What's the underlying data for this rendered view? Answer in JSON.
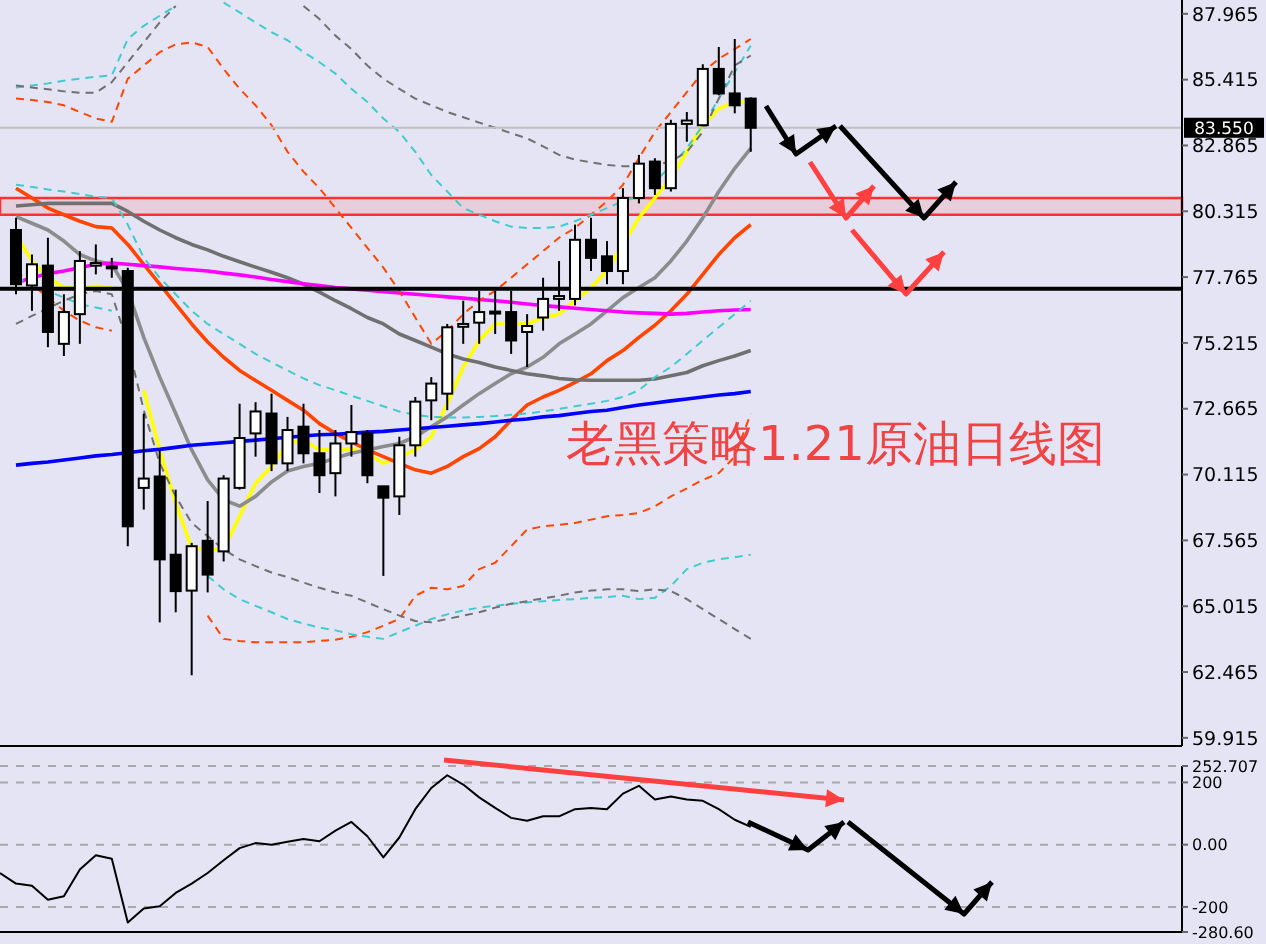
{
  "chart_data": [
    {
      "type": "candlestick",
      "title": "老黑策略1.21原油日线图",
      "color": "#000000",
      "categories": [
        null,
        null,
        null,
        null,
        null,
        null,
        null,
        null,
        null,
        null,
        null,
        null,
        null,
        null,
        null,
        null,
        null,
        null,
        null,
        null,
        null,
        null,
        null,
        null,
        null,
        null,
        null,
        null,
        null,
        null,
        null,
        null,
        null,
        null,
        null,
        null,
        null,
        null,
        null,
        null,
        null,
        null,
        null,
        null,
        null,
        null,
        null,
        null,
        null,
        null,
        null,
        null,
        null,
        null,
        null,
        null,
        null,
        null,
        null,
        null,
        null,
        null,
        null,
        null,
        null,
        null,
        null,
        null,
        null,
        null,
        null,
        null,
        null,
        null,
        null
      ],
      "ohlc": [
        null,
        [
          79.59,
          80.06,
          77.1,
          77.49
        ],
        [
          77.44,
          78.64,
          76.46,
          78.26
        ],
        [
          78.21,
          79.29,
          75.05,
          75.64
        ],
        [
          75.18,
          77.1,
          74.71,
          76.41
        ],
        [
          76.33,
          78.77,
          75.18,
          78.39
        ],
        [
          78.21,
          79.03,
          77.87,
          78.31
        ],
        [
          78.13,
          78.51,
          77.74,
          78.18
        ],
        [
          78.0,
          78.13,
          67.34,
          68.11
        ],
        [
          69.6,
          72.48,
          68.76,
          69.96
        ],
        [
          70.04,
          71.07,
          64.39,
          66.83
        ],
        [
          67.01,
          69.53,
          64.78,
          65.6
        ],
        [
          65.62,
          67.47,
          62.34,
          67.34
        ],
        [
          67.55,
          69.09,
          65.55,
          66.24
        ],
        [
          67.14,
          70.09,
          66.75,
          69.96
        ],
        [
          69.6,
          72.86,
          69.53,
          71.53
        ],
        [
          71.71,
          72.92,
          70.81,
          72.56
        ],
        [
          72.48,
          73.25,
          70.25,
          70.55
        ],
        [
          70.55,
          72.35,
          70.25,
          71.84
        ],
        [
          71.97,
          72.86,
          70.55,
          70.94
        ],
        [
          70.94,
          71.84,
          69.4,
          70.09
        ],
        [
          70.17,
          71.84,
          69.27,
          71.32
        ],
        [
          71.32,
          72.81,
          70.81,
          71.76
        ],
        [
          71.71,
          71.84,
          69.78,
          70.09
        ],
        [
          69.66,
          69.66,
          66.19,
          69.22
        ],
        [
          69.27,
          71.58,
          68.55,
          71.25
        ],
        [
          71.25,
          73.12,
          70.81,
          72.94
        ],
        [
          72.99,
          73.89,
          72.22,
          73.64
        ],
        [
          73.25,
          75.95,
          72.61,
          75.82
        ],
        [
          75.84,
          76.85,
          75.18,
          75.95
        ],
        [
          76.0,
          77.23,
          75.18,
          76.41
        ],
        [
          76.38,
          77.23,
          75.56,
          76.43
        ],
        [
          76.41,
          77.23,
          74.79,
          75.31
        ],
        [
          75.64,
          76.33,
          74.28,
          75.87
        ],
        [
          76.2,
          77.74,
          75.69,
          76.92
        ],
        [
          76.92,
          78.39,
          76.46,
          77.03
        ],
        [
          76.92,
          79.8,
          76.67,
          79.21
        ],
        [
          79.21,
          80.06,
          78.0,
          78.51
        ],
        [
          78.57,
          79.16,
          77.49,
          78.0
        ],
        [
          78.0,
          81.21,
          77.49,
          80.83
        ],
        [
          80.83,
          82.5,
          80.62,
          82.16
        ],
        [
          82.24,
          82.37,
          80.95,
          81.21
        ],
        [
          81.21,
          83.86,
          81.08,
          83.7
        ],
        [
          83.7,
          84.16,
          83.01,
          83.83
        ],
        [
          83.65,
          86.01,
          83.6,
          85.83
        ],
        [
          85.83,
          86.68,
          84.81,
          84.88
        ],
        [
          84.88,
          86.99,
          84.11,
          84.42
        ],
        [
          84.68,
          84.73,
          82.62,
          83.55
        ],
        null,
        null,
        null,
        null,
        null,
        null,
        null,
        null,
        null,
        null,
        null,
        null,
        null,
        null,
        null,
        null,
        null,
        null,
        null,
        null,
        null,
        null,
        null,
        null,
        null,
        null,
        null
      ],
      "series": [
        {
          "type": "line",
          "color": "#ffff00",
          "line_style": "solid",
          "values": [
            null,
            79.41,
            78.39,
            77.74,
            77.36,
            77.31,
            77.41,
            77.36,
            null,
            73.38,
            71.07,
            69.01,
            67.27,
            67.22,
            67.22,
            68.5,
            69.78,
            70.43,
            71.32,
            71.45,
            71.07,
            71.07,
            71.12,
            70.94,
            70.55,
            70.81,
            71.07,
            71.58,
            72.86,
            74.28,
            75.31,
            75.95,
            75.95,
            75.95,
            76.2,
            76.33,
            76.85,
            77.36,
            78.0,
            79.03,
            80.06,
            80.83,
            81.6,
            82.62,
            83.65,
            84.29,
            84.55,
            84.55,
            null,
            null,
            null,
            null,
            null,
            null,
            null,
            null,
            null,
            null,
            null,
            null,
            null,
            null,
            null,
            null,
            null,
            null,
            null,
            null,
            null,
            null,
            null,
            null,
            null,
            null,
            null
          ]
        },
        {
          "type": "line",
          "color": "#8c8c8c",
          "line_style": "solid",
          "values": [
            null,
            80.11,
            79.85,
            79.59,
            79.16,
            78.64,
            78.39,
            78.26,
            77.23,
            75.43,
            73.89,
            72.48,
            71.07,
            69.91,
            69.14,
            68.89,
            69.27,
            69.83,
            70.25,
            70.43,
            70.55,
            70.76,
            70.94,
            71.07,
            71.2,
            71.32,
            71.58,
            71.97,
            72.35,
            72.81,
            73.25,
            73.64,
            74.02,
            74.28,
            74.66,
            75.18,
            75.56,
            75.95,
            76.46,
            76.97,
            77.36,
            77.74,
            78.39,
            79.16,
            80.06,
            81.08,
            81.98,
            82.75,
            null,
            null,
            null,
            null,
            null,
            null,
            null,
            null,
            null,
            null,
            null,
            null,
            null,
            null,
            null,
            null,
            null,
            null,
            null,
            null,
            null,
            null,
            null,
            null,
            null,
            null,
            null
          ]
        },
        {
          "type": "line",
          "color": "#ff4500",
          "line_style": "solid",
          "values": [
            null,
            81.21,
            80.83,
            80.44,
            80.18,
            79.93,
            79.72,
            79.67,
            79.03,
            78.26,
            77.49,
            76.72,
            75.95,
            75.25,
            74.66,
            74.15,
            73.76,
            73.38,
            72.99,
            72.61,
            72.09,
            71.71,
            71.38,
            71.07,
            70.81,
            70.55,
            70.3,
            70.17,
            70.43,
            70.81,
            71.12,
            71.58,
            72.22,
            72.81,
            73.12,
            73.38,
            73.69,
            74.02,
            74.53,
            74.92,
            75.43,
            75.9,
            76.46,
            77.1,
            77.87,
            78.64,
            79.29,
            79.8,
            null,
            null,
            null,
            null,
            null,
            null,
            null,
            null,
            null,
            null,
            null,
            null,
            null,
            null,
            null,
            null,
            null,
            null,
            null,
            null,
            null,
            null,
            null,
            null,
            null,
            null,
            null
          ]
        },
        {
          "type": "line",
          "color": "#707070",
          "line_style": "solid",
          "values": [
            null,
            80.52,
            80.57,
            80.62,
            80.62,
            80.62,
            80.62,
            80.62,
            80.31,
            79.93,
            79.59,
            79.29,
            79.03,
            78.82,
            78.57,
            78.36,
            78.15,
            77.95,
            77.74,
            77.49,
            77.18,
            76.85,
            76.54,
            76.2,
            75.95,
            75.56,
            75.31,
            75.05,
            74.79,
            74.59,
            74.46,
            74.28,
            74.15,
            74.02,
            73.94,
            73.84,
            73.79,
            73.77,
            73.77,
            73.77,
            73.77,
            73.82,
            73.94,
            74.07,
            74.33,
            74.53,
            74.71,
            74.92,
            null,
            null,
            null,
            null,
            null,
            null,
            null,
            null,
            null,
            null,
            null,
            null,
            null,
            null,
            null,
            null,
            null,
            null,
            null,
            null,
            null,
            null,
            null,
            null,
            null,
            null,
            null
          ]
        },
        {
          "type": "line",
          "color": "#ff00ff",
          "line_style": "solid",
          "values": [
            null,
            77.54,
            77.74,
            77.9,
            78.0,
            78.13,
            78.26,
            78.31,
            78.26,
            78.21,
            78.16,
            78.1,
            78.05,
            78.0,
            77.92,
            77.85,
            77.77,
            77.67,
            77.59,
            77.51,
            77.44,
            77.36,
            77.31,
            77.26,
            77.2,
            77.15,
            77.1,
            77.05,
            77.0,
            76.95,
            76.9,
            76.85,
            76.79,
            76.72,
            76.66,
            76.61,
            76.56,
            76.51,
            76.46,
            76.41,
            76.38,
            76.36,
            76.33,
            76.36,
            76.41,
            76.46,
            76.49,
            76.51,
            null,
            null,
            null,
            null,
            null,
            null,
            null,
            null,
            null,
            null,
            null,
            null,
            null,
            null,
            null,
            null,
            null,
            null,
            null,
            null,
            null,
            null,
            null,
            null,
            null,
            null,
            null
          ]
        },
        {
          "type": "line",
          "color": "#0000ff",
          "line_style": "solid",
          "values": [
            null,
            70.48,
            70.55,
            70.6,
            70.68,
            70.76,
            70.84,
            70.89,
            70.96,
            71.04,
            71.09,
            71.17,
            71.25,
            71.3,
            71.35,
            71.4,
            71.45,
            71.5,
            71.56,
            71.61,
            71.66,
            71.68,
            71.71,
            71.76,
            71.79,
            71.84,
            71.89,
            71.94,
            71.99,
            72.04,
            72.09,
            72.15,
            72.22,
            72.27,
            72.35,
            72.4,
            72.48,
            72.56,
            72.61,
            72.71,
            72.81,
            72.89,
            72.97,
            73.04,
            73.12,
            73.2,
            73.25,
            73.33,
            null,
            null,
            null,
            null,
            null,
            null,
            null,
            null,
            null,
            null,
            null,
            null,
            null,
            null,
            null,
            null,
            null,
            null,
            null,
            null,
            null,
            null,
            null,
            null,
            null,
            null,
            null
          ]
        },
        {
          "type": "line",
          "color": "#ff4500",
          "line_style": "dashed",
          "values": [
            null,
            84.68,
            84.63,
            84.55,
            84.42,
            84.16,
            83.91,
            83.78,
            85.45,
            85.96,
            86.48,
            86.78,
            86.86,
            86.68,
            85.83,
            85.06,
            84.42,
            83.65,
            82.62,
            81.85,
            81.21,
            80.44,
            79.67,
            78.9,
            78.13,
            77.23,
            76.2,
            75.18,
            75.69,
            76.33,
            76.85,
            77.23,
            77.74,
            78.26,
            78.77,
            79.29,
            79.67,
            80.18,
            80.7,
            81.34,
            82.37,
            83.39,
            84.16,
            84.93,
            85.7,
            86.22,
            86.6,
            86.99,
            null,
            null,
            null,
            null,
            null,
            null,
            null,
            null,
            null,
            null,
            null,
            null,
            null,
            null,
            null,
            null,
            null,
            null,
            null,
            null,
            null,
            null,
            null,
            null,
            null,
            null,
            null
          ]
        },
        {
          "type": "line",
          "color": "#ff4500",
          "line_style": "dashed",
          "values": [
            null,
            78.0,
            77.49,
            76.97,
            76.46,
            76.08,
            75.82,
            75.69,
            null,
            null,
            null,
            null,
            null,
            64.65,
            63.75,
            63.67,
            63.62,
            63.62,
            63.62,
            63.62,
            63.67,
            63.72,
            63.83,
            64.01,
            64.26,
            64.52,
            65.42,
            65.73,
            65.67,
            65.8,
            66.45,
            66.7,
            67.34,
            67.99,
            68.11,
            68.17,
            68.24,
            68.37,
            68.5,
            68.55,
            68.63,
            68.88,
            69.27,
            69.58,
            69.91,
            70.17,
            70.81,
            72.48,
            null,
            null,
            null,
            null,
            null,
            null,
            null,
            null,
            null,
            null,
            null,
            null,
            null,
            null,
            null,
            null,
            null,
            null,
            null,
            null,
            null,
            null,
            null,
            null,
            null,
            null,
            null
          ]
        },
        {
          "type": "line",
          "color": "#40cccc",
          "line_style": "dashed",
          "values": [
            null,
            85.11,
            85.19,
            85.27,
            85.37,
            85.45,
            85.53,
            85.58,
            86.99,
            87.5,
            87.89,
            88.27,
            null,
            null,
            88.4,
            88.02,
            87.63,
            87.25,
            86.94,
            86.48,
            86.09,
            85.65,
            85.06,
            84.55,
            83.91,
            83.39,
            82.62,
            81.72,
            81.08,
            80.44,
            80.18,
            79.93,
            79.72,
            79.67,
            79.67,
            79.72,
            79.93,
            80.18,
            80.44,
            80.7,
            80.9,
            81.47,
            82.06,
            82.75,
            83.65,
            84.68,
            85.7,
            86.73,
            null,
            null,
            null,
            null,
            null,
            null,
            null,
            null,
            null,
            null,
            null,
            null,
            null,
            null,
            null,
            null,
            null,
            null,
            null,
            null,
            null,
            null,
            null,
            null,
            null,
            null,
            null
          ]
        },
        {
          "type": "line",
          "color": "#40cccc",
          "line_style": "dashed",
          "values": [
            null,
            81.34,
            81.26,
            81.16,
            81.08,
            80.98,
            80.88,
            80.83,
            79.8,
            78.51,
            77.74,
            77.1,
            76.46,
            75.95,
            75.56,
            75.18,
            74.79,
            74.46,
            74.15,
            73.84,
            73.58,
            73.38,
            73.17,
            72.97,
            72.76,
            72.56,
            72.43,
            72.35,
            72.33,
            72.33,
            72.35,
            72.38,
            72.43,
            72.48,
            72.56,
            72.66,
            72.76,
            72.86,
            72.97,
            73.12,
            73.38,
            73.89,
            74.28,
            74.79,
            75.31,
            75.82,
            76.33,
            76.85,
            null,
            null,
            null,
            null,
            null,
            null,
            null,
            null,
            null,
            null,
            null,
            null,
            null,
            null,
            null,
            null,
            null,
            null,
            null,
            null,
            null,
            null,
            null,
            null,
            null,
            null,
            null
          ]
        },
        {
          "type": "line",
          "color": "#40cccc",
          "line_style": "dashed",
          "values": [
            null,
            77.74,
            77.49,
            77.23,
            76.97,
            76.72,
            76.59,
            76.46,
            null,
            null,
            null,
            null,
            null,
            66.19,
            65.67,
            65.29,
            65.03,
            64.78,
            64.52,
            64.34,
            64.19,
            64.08,
            63.93,
            63.83,
            63.75,
            64.01,
            64.26,
            64.52,
            64.7,
            64.85,
            64.96,
            65.03,
            65.11,
            65.16,
            65.21,
            65.26,
            65.29,
            65.34,
            65.37,
            65.42,
            65.29,
            65.34,
            65.8,
            66.45,
            66.7,
            66.83,
            66.91,
            67.01,
            null,
            null,
            null,
            null,
            null,
            null,
            null,
            null,
            null,
            null,
            null,
            null,
            null,
            null,
            null,
            null,
            null,
            null,
            null,
            null,
            null,
            null,
            null,
            null,
            null,
            null,
            null
          ]
        },
        {
          "type": "line",
          "color": "#707070",
          "line_style": "dashed",
          "values": [
            null,
            85.19,
            85.11,
            85.04,
            84.96,
            84.91,
            84.91,
            85.32,
            86.09,
            86.86,
            87.63,
            88.27,
            null,
            null,
            null,
            null,
            null,
            null,
            null,
            88.27,
            87.76,
            87.12,
            86.6,
            85.96,
            85.45,
            85.06,
            84.68,
            84.42,
            84.16,
            83.96,
            83.75,
            83.55,
            83.34,
            83.14,
            82.83,
            82.5,
            82.32,
            82.21,
            82.11,
            82.06,
            82.06,
            82.11,
            82.24,
            82.62,
            83.39,
            84.68,
            85.96,
            86.35,
            null,
            null,
            null,
            null,
            null,
            null,
            null,
            null,
            null,
            null,
            null,
            null,
            null,
            null,
            null,
            null,
            null,
            null,
            null,
            null,
            null,
            null,
            null,
            null,
            null,
            null,
            null
          ]
        },
        {
          "type": "line",
          "color": "#707070",
          "line_style": "dashed",
          "values": [
            null,
            75.95,
            76.26,
            76.56,
            76.85,
            77.1,
            77.23,
            77.1,
            75.18,
            72.61,
            70.55,
            69.27,
            68.24,
            67.73,
            67.22,
            66.83,
            66.57,
            66.32,
            66.14,
            65.93,
            65.73,
            65.55,
            65.42,
            65.16,
            64.9,
            64.65,
            64.44,
            64.39,
            64.52,
            64.65,
            64.78,
            64.96,
            65.11,
            65.21,
            65.32,
            65.42,
            65.55,
            65.62,
            65.67,
            65.67,
            65.6,
            65.67,
            65.6,
            65.29,
            64.9,
            64.52,
            64.13,
            63.75,
            null,
            null,
            null,
            null,
            null,
            null,
            null,
            null,
            null,
            null,
            null,
            null,
            null,
            null,
            null,
            null,
            null,
            null,
            null,
            null,
            null,
            null,
            null,
            null,
            null,
            null,
            null
          ]
        }
      ],
      "ylim": [
        59.6,
        88.5
      ],
      "yticks": [
        87.965,
        85.415,
        82.865,
        80.315,
        77.765,
        75.215,
        72.665,
        70.115,
        67.565,
        65.015,
        62.465,
        59.915
      ],
      "ref_lines": [
        {
          "axis": "y",
          "value": 83.55,
          "label": "83.550",
          "color": "#c0c0c0"
        },
        {
          "axis": "y",
          "value": 77.31,
          "color": "#000000"
        }
      ],
      "bands": [
        {
          "axis": "y",
          "from": 80.18,
          "to": 80.83,
          "color": "#ff3030"
        }
      ]
    },
    {
      "type": "line",
      "color": "#000000",
      "categories": [
        null,
        null,
        null,
        null,
        null,
        null,
        null,
        null,
        null,
        null,
        null,
        null,
        null,
        null,
        null,
        null,
        null,
        null,
        null,
        null,
        null,
        null,
        null,
        null,
        null,
        null,
        null,
        null,
        null,
        null,
        null,
        null,
        null,
        null,
        null,
        null,
        null,
        null,
        null,
        null,
        null,
        null,
        null,
        null,
        null,
        null,
        null,
        null,
        null,
        null,
        null,
        null,
        null,
        null,
        null,
        null,
        null,
        null,
        null,
        null,
        null,
        null,
        null,
        null,
        null,
        null,
        null,
        null,
        null,
        null,
        null,
        null,
        null,
        null,
        null
      ],
      "values": [
        -91,
        -125,
        -132,
        -177,
        -166,
        -80,
        -34,
        -45,
        -250,
        -205,
        -198,
        -155,
        -125,
        -91,
        -50,
        -11,
        5,
        0,
        9,
        18,
        11,
        45,
        73,
        27,
        -41,
        23,
        114,
        182,
        223,
        193,
        152,
        118,
        86,
        77,
        91,
        91,
        114,
        118,
        114,
        164,
        189,
        145,
        155,
        145,
        141,
        114,
        80,
        57,
        null,
        null,
        null,
        null,
        null,
        null,
        null,
        null,
        null,
        null,
        null,
        null,
        null,
        null,
        null,
        null,
        null,
        null,
        null,
        null,
        null,
        null,
        null,
        null,
        null,
        null,
        null
      ],
      "ylim": [
        -280.6,
        252.707
      ],
      "yticks": [
        252.707,
        200,
        {
          "value": 0,
          "label": "0.00"
        },
        -200,
        {
          "value": -280.6,
          "label": "-280.60"
        }
      ],
      "grid": "y"
    }
  ]
}
